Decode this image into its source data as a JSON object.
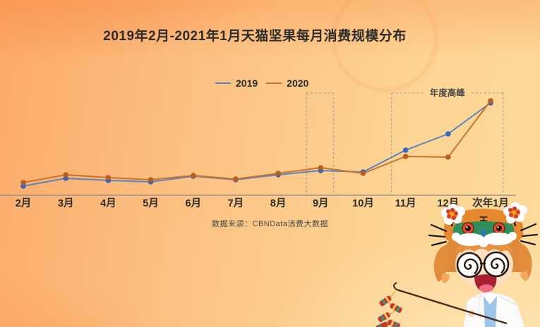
{
  "title": "2019年2月-2021年1月天猫坚果每月消费规模分布",
  "source": "数据来源：CBNData消费大数据",
  "colors": {
    "accent_blue_line": "#5b83c0",
    "accent_blue_dot": "#3565bd",
    "accent_orange_line": "#c8742c",
    "accent_orange_dot": "#b95f1d",
    "axis": "#8c8c8c",
    "dashed_box": "#9a9a9a",
    "text": "#2d2d2d"
  },
  "chart_data": {
    "type": "line",
    "title": "2019年2月-2021年1月天猫坚果每月消费规模分布",
    "xlabel": "",
    "ylabel": "",
    "categories": [
      "2月",
      "3月",
      "4月",
      "5月",
      "6月",
      "7月",
      "8月",
      "9月",
      "10月",
      "11月",
      "12月",
      "次年1月"
    ],
    "series": [
      {
        "name": "2019",
        "line_color": "#5b83c0",
        "dot_color": "#3565bd",
        "values": [
          13,
          24,
          21,
          19,
          27,
          22,
          29,
          35,
          33,
          64,
          87,
          131
        ]
      },
      {
        "name": "2020",
        "line_color": "#c8742c",
        "dot_color": "#b95f1d",
        "values": [
          18,
          29,
          25,
          22,
          28,
          23,
          31,
          39,
          31,
          55,
          54,
          134
        ]
      }
    ],
    "ylim": [
      0,
      150
    ],
    "grid": false,
    "legend_position": "top-center",
    "y_axis_shown": false,
    "annotations": [
      {
        "type": "dashed-box",
        "from": "9月",
        "to": "9月",
        "label": ""
      },
      {
        "type": "dashed-box",
        "from": "11月",
        "to": "次年1月",
        "label": "年度高峰"
      }
    ]
  },
  "decor": {
    "mascot": "girl-with-tiger-hat-spiral-glasses-holding-firecracker-stick"
  }
}
